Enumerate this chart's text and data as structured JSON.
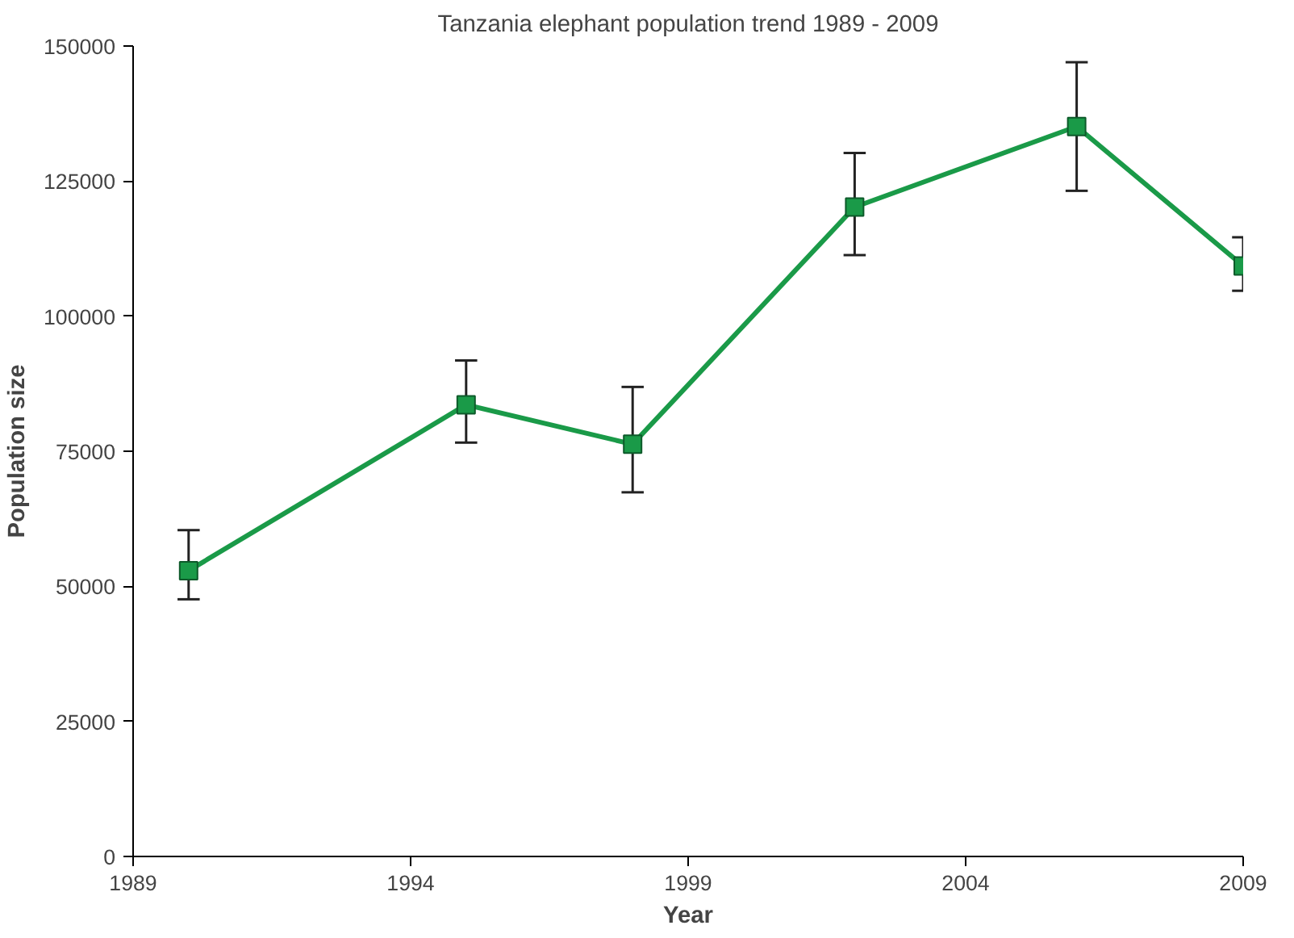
{
  "chart_data": {
    "type": "line",
    "title": "Tanzania elephant population trend 1989 - 2009",
    "xlabel": "Year",
    "ylabel": "Population size",
    "x": [
      1990,
      1995,
      1998,
      2002,
      2006,
      2009
    ],
    "series": [
      {
        "color": "#1a9a48",
        "values": [
          52900,
          83600,
          76300,
          120200,
          135100,
          109300
        ],
        "errors": [
          [
            47600,
            60400
          ],
          [
            76600,
            91800
          ],
          [
            67400,
            86900
          ],
          [
            111300,
            130200
          ],
          [
            123200,
            147000
          ],
          [
            104700,
            114600
          ]
        ]
      }
    ],
    "xlim": [
      1989,
      2009
    ],
    "xticks": [
      1989,
      1994,
      1999,
      2004,
      2009
    ],
    "ylim": [
      0,
      150000
    ],
    "yticks": [
      0,
      25000,
      50000,
      75000,
      100000,
      125000,
      150000
    ],
    "grid": false,
    "marker": "square",
    "line_style": "solid"
  }
}
